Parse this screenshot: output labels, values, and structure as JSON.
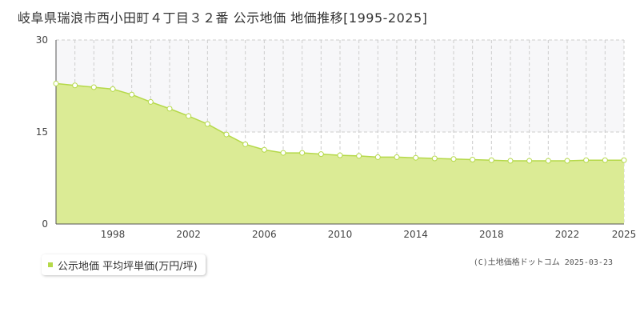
{
  "title": "岐阜県瑞浪市西小田町４丁目３２番 公示地価 地価推移[1995-2025]",
  "legend_label": "公示地価 平均坪単価(万円/坪)",
  "credit": "(C)土地価格ドットコム 2025-03-23",
  "colors": {
    "fill": "#dbeb95",
    "line": "#b5d94a",
    "point_fill": "#ffffff",
    "band": "#f7f7f9",
    "grid": "#cccccc"
  },
  "chart_data": {
    "type": "area",
    "x": [
      1995,
      1996,
      1997,
      1998,
      1999,
      2000,
      2001,
      2002,
      2003,
      2004,
      2005,
      2006,
      2007,
      2008,
      2009,
      2010,
      2011,
      2012,
      2013,
      2014,
      2015,
      2016,
      2017,
      2018,
      2019,
      2020,
      2021,
      2022,
      2023,
      2024,
      2025
    ],
    "values": [
      22.9,
      22.6,
      22.3,
      22.0,
      21.1,
      19.9,
      18.8,
      17.6,
      16.3,
      14.6,
      13.0,
      12.1,
      11.6,
      11.6,
      11.4,
      11.2,
      11.1,
      10.9,
      10.9,
      10.8,
      10.7,
      10.6,
      10.5,
      10.4,
      10.3,
      10.3,
      10.3,
      10.3,
      10.4,
      10.4,
      10.4
    ],
    "x_ticks": [
      "1998",
      "2002",
      "2006",
      "2010",
      "2014",
      "2018",
      "2022",
      "2025"
    ],
    "y_ticks": [
      "0",
      "15",
      "30"
    ],
    "ylim": [
      0,
      30
    ],
    "xlim": [
      1995,
      2025
    ]
  }
}
